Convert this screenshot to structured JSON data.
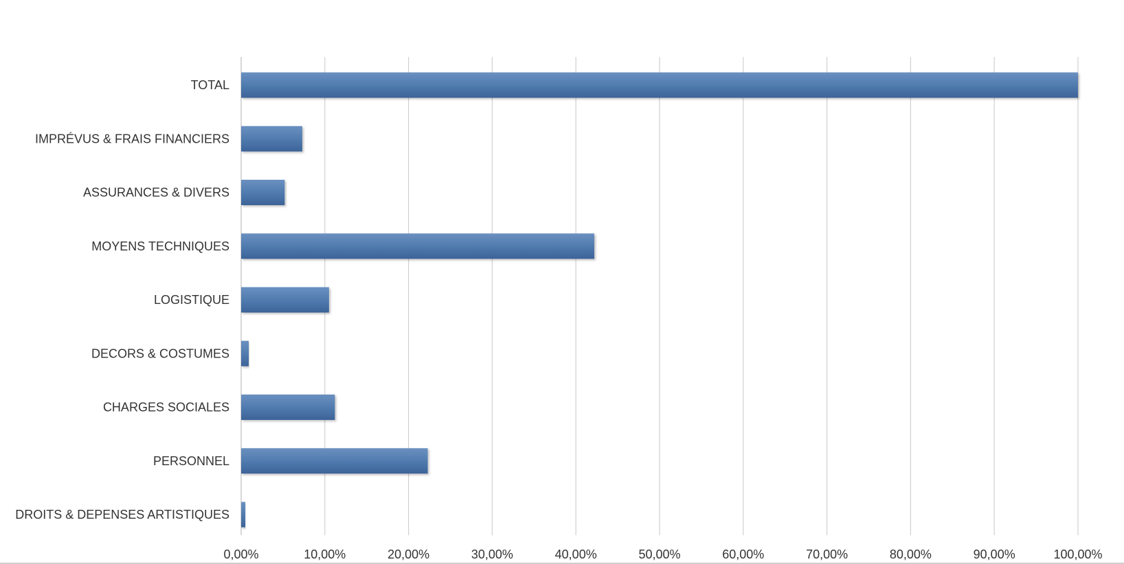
{
  "chart_data": {
    "type": "bar",
    "orientation": "horizontal",
    "categories": [
      "TOTAL",
      "IMPRÉVUS & FRAIS FINANCIERS",
      "ASSURANCES & DIVERS",
      "MOYENS TECHNIQUES",
      "LOGISTIQUE",
      "DECORS & COSTUMES",
      "CHARGES SOCIALES",
      "PERSONNEL",
      "DROITS & DEPENSES ARTISTIQUES"
    ],
    "values": [
      100.0,
      7.3,
      5.2,
      42.2,
      10.5,
      0.9,
      11.2,
      22.3,
      0.5
    ],
    "xlim": [
      0,
      100
    ],
    "x_ticks": [
      "0,00%",
      "10,00%",
      "20,00%",
      "30,00%",
      "40,00%",
      "50,00%",
      "60,00%",
      "70,00%",
      "80,00%",
      "90,00%",
      "100,00%"
    ],
    "grid": "vertical",
    "legend": "none",
    "title": "",
    "xlabel": "",
    "ylabel": "",
    "colors": {
      "bar": "#4f79ad",
      "bar_light": "#6a90c0",
      "bar_dark": "#3c6398",
      "grid": "#d0d0d0",
      "text": "#333333"
    }
  }
}
